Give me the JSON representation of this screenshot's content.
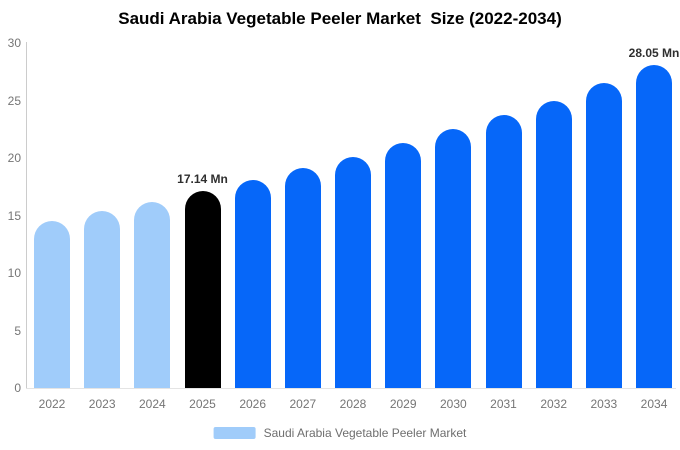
{
  "chart_data": {
    "type": "bar",
    "title": "Saudi Arabia Vegetable Peeler Market  Size (2022-2034)",
    "categories": [
      "2022",
      "2023",
      "2024",
      "2025",
      "2026",
      "2027",
      "2028",
      "2029",
      "2030",
      "2031",
      "2032",
      "2033",
      "2034"
    ],
    "values": [
      14.5,
      15.4,
      16.2,
      17.14,
      18.1,
      19.1,
      20.1,
      21.3,
      22.5,
      23.7,
      25.0,
      26.5,
      28.05
    ],
    "bar_colors": [
      "#a0ccfa",
      "#a0ccfa",
      "#a0ccfa",
      "#000000",
      "#0667f9",
      "#0667f9",
      "#0667f9",
      "#0667f9",
      "#0667f9",
      "#0667f9",
      "#0667f9",
      "#0667f9",
      "#0667f9"
    ],
    "annotations": [
      {
        "category": "2025",
        "label": "17.14 Mn"
      },
      {
        "category": "2034",
        "label": "28.05 Mn"
      }
    ],
    "yticks": [
      0,
      5,
      10,
      15,
      20,
      25,
      30
    ],
    "ylim": [
      0,
      30
    ],
    "xlabel": "",
    "ylabel": "",
    "grid": false,
    "legend_position": "bottom",
    "unit": "Mn"
  },
  "legend": {
    "label": "Saudi Arabia Vegetable Peeler Market",
    "swatch_color": "#a0ccfa"
  },
  "colors": {
    "forecast_blue": "#0667f9",
    "historical_light_blue": "#a0ccfa",
    "highlight_black": "#000000",
    "axis_text": "#757575",
    "annotation_text": "#2f2f2f",
    "y_axis_line": "#cccccc",
    "x_axis_line": "#e4e4e4"
  }
}
